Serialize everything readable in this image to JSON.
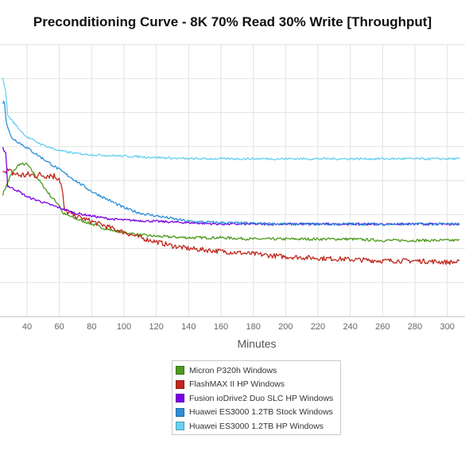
{
  "chart_data": {
    "type": "line",
    "title": "Preconditioning Curve - 8K 70% Read 30% Write [Throughput]",
    "xlabel": "Minutes",
    "ylabel": "",
    "x_ticks": [
      40,
      60,
      80,
      100,
      120,
      140,
      160,
      180,
      200,
      220,
      240,
      260,
      280,
      300
    ],
    "xlim": [
      25,
      308
    ],
    "ylim": [
      0,
      100
    ],
    "grid": true,
    "legend_position": "bottom-center",
    "series": [
      {
        "name": "Micron P320h Windows",
        "color": "#4c9a1c",
        "points": [
          [
            25,
            45
          ],
          [
            30,
            52
          ],
          [
            35,
            56
          ],
          [
            40,
            56
          ],
          [
            45,
            52
          ],
          [
            50,
            48
          ],
          [
            55,
            44
          ],
          [
            60,
            41
          ],
          [
            62,
            38
          ],
          [
            70,
            36
          ],
          [
            80,
            34
          ],
          [
            90,
            32
          ],
          [
            100,
            31
          ],
          [
            110,
            30
          ],
          [
            120,
            29.5
          ],
          [
            140,
            29
          ],
          [
            160,
            29
          ],
          [
            180,
            28.5
          ],
          [
            200,
            28.5
          ],
          [
            220,
            28.5
          ],
          [
            240,
            28.5
          ],
          [
            260,
            28
          ],
          [
            280,
            28
          ],
          [
            300,
            28
          ],
          [
            308,
            28
          ]
        ]
      },
      {
        "name": "FlashMAX II HP Windows",
        "color": "#c0281e",
        "points": [
          [
            25,
            54
          ],
          [
            30,
            53
          ],
          [
            35,
            52
          ],
          [
            40,
            52
          ],
          [
            45,
            52
          ],
          [
            50,
            52
          ],
          [
            55,
            52
          ],
          [
            60,
            51
          ],
          [
            62,
            46
          ],
          [
            63,
            39
          ],
          [
            70,
            37
          ],
          [
            80,
            35
          ],
          [
            90,
            33
          ],
          [
            100,
            31
          ],
          [
            110,
            29
          ],
          [
            120,
            27.5
          ],
          [
            130,
            26
          ],
          [
            140,
            25
          ],
          [
            160,
            24
          ],
          [
            180,
            23
          ],
          [
            200,
            22
          ],
          [
            220,
            21.5
          ],
          [
            240,
            21
          ],
          [
            260,
            20.5
          ],
          [
            280,
            20.5
          ],
          [
            300,
            20
          ],
          [
            308,
            20
          ]
        ]
      },
      {
        "name": "Fusion ioDrive2 Duo SLC HP Windows",
        "color": "#7a00e6",
        "points": [
          [
            25,
            62
          ],
          [
            27,
            60
          ],
          [
            28,
            48
          ],
          [
            35,
            46
          ],
          [
            40,
            44
          ],
          [
            50,
            42
          ],
          [
            60,
            40
          ],
          [
            70,
            38
          ],
          [
            80,
            37
          ],
          [
            90,
            36
          ],
          [
            100,
            35.5
          ],
          [
            120,
            35
          ],
          [
            140,
            34.5
          ],
          [
            160,
            34
          ],
          [
            200,
            34
          ],
          [
            240,
            34
          ],
          [
            280,
            34
          ],
          [
            308,
            34
          ]
        ]
      },
      {
        "name": "Huawei ES3000 1.2TB Stock Windows",
        "color": "#2e8fd8",
        "points": [
          [
            25,
            78
          ],
          [
            26,
            80
          ],
          [
            27,
            72
          ],
          [
            30,
            66
          ],
          [
            40,
            62
          ],
          [
            50,
            58
          ],
          [
            60,
            54
          ],
          [
            70,
            50
          ],
          [
            80,
            46
          ],
          [
            90,
            43
          ],
          [
            100,
            40
          ],
          [
            110,
            38
          ],
          [
            120,
            37
          ],
          [
            140,
            35
          ],
          [
            160,
            34.5
          ],
          [
            200,
            34
          ],
          [
            240,
            34
          ],
          [
            280,
            34
          ],
          [
            308,
            34
          ]
        ]
      },
      {
        "name": "Huawei ES3000 1.2TB HP Windows",
        "color": "#68d0f2",
        "points": [
          [
            25,
            88
          ],
          [
            27,
            82
          ],
          [
            28,
            74
          ],
          [
            35,
            69
          ],
          [
            40,
            66
          ],
          [
            50,
            63
          ],
          [
            60,
            61
          ],
          [
            70,
            60
          ],
          [
            80,
            59.5
          ],
          [
            100,
            59
          ],
          [
            120,
            58.5
          ],
          [
            140,
            58
          ],
          [
            160,
            58
          ],
          [
            200,
            58
          ],
          [
            240,
            58
          ],
          [
            280,
            58
          ],
          [
            308,
            58
          ]
        ]
      }
    ]
  }
}
